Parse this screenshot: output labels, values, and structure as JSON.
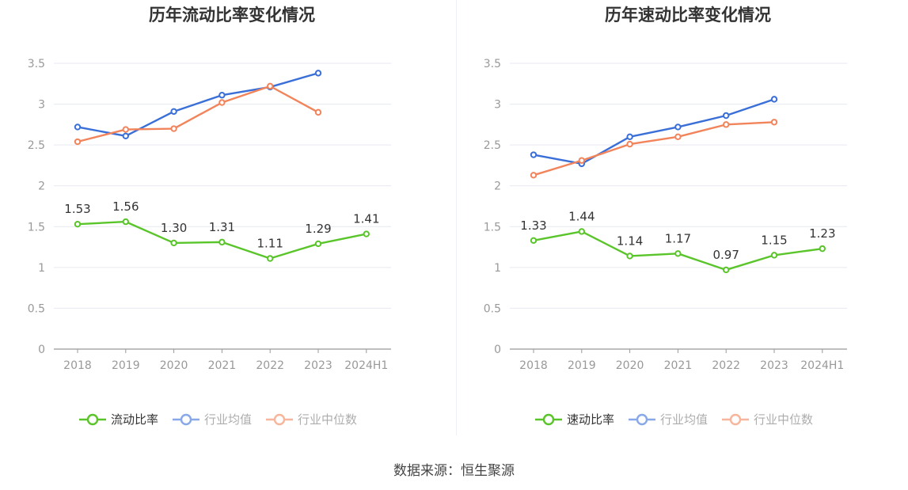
{
  "source_text": "数据来源：恒生聚源",
  "colors": {
    "green": "#5ac52a",
    "blue": "#3a6fd8",
    "orange": "#f2845c",
    "grid": "#e6e9f0",
    "axis": "#999999",
    "tick_text": "#999999",
    "label_text": "#333333"
  },
  "chart_data": [
    {
      "type": "line",
      "title": "历年流动比率变化情况",
      "categories": [
        "2018",
        "2019",
        "2020",
        "2021",
        "2022",
        "2023",
        "2024H1"
      ],
      "y_ticks": [
        "0",
        "0.5",
        "1",
        "1.5",
        "2",
        "2.5",
        "3",
        "3.5"
      ],
      "ylim": [
        0,
        3.5
      ],
      "series": [
        {
          "name": "流动比率",
          "color": "green",
          "values": [
            1.53,
            1.56,
            1.3,
            1.31,
            1.11,
            1.29,
            1.41
          ],
          "labels": [
            "1.53",
            "1.56",
            "1.30",
            "1.31",
            "1.11",
            "1.29",
            "1.41"
          ]
        },
        {
          "name": "行业均值",
          "color": "blue",
          "values": [
            2.72,
            2.61,
            2.91,
            3.11,
            3.21,
            3.38,
            null
          ]
        },
        {
          "name": "行业中位数",
          "color": "orange",
          "values": [
            2.54,
            2.69,
            2.7,
            3.02,
            3.22,
            2.9,
            null
          ]
        }
      ]
    },
    {
      "type": "line",
      "title": "历年速动比率变化情况",
      "categories": [
        "2018",
        "2019",
        "2020",
        "2021",
        "2022",
        "2023",
        "2024H1"
      ],
      "y_ticks": [
        "0",
        "0.5",
        "1",
        "1.5",
        "2",
        "2.5",
        "3",
        "3.5"
      ],
      "ylim": [
        0,
        3.5
      ],
      "series": [
        {
          "name": "速动比率",
          "color": "green",
          "values": [
            1.33,
            1.44,
            1.14,
            1.17,
            0.97,
            1.15,
            1.23
          ],
          "labels": [
            "1.33",
            "1.44",
            "1.14",
            "1.17",
            "0.97",
            "1.15",
            "1.23"
          ]
        },
        {
          "name": "行业均值",
          "color": "blue",
          "values": [
            2.38,
            2.27,
            2.6,
            2.72,
            2.86,
            3.06,
            null
          ]
        },
        {
          "name": "行业中位数",
          "color": "orange",
          "values": [
            2.13,
            2.31,
            2.51,
            2.6,
            2.75,
            2.78,
            null
          ]
        }
      ]
    }
  ]
}
